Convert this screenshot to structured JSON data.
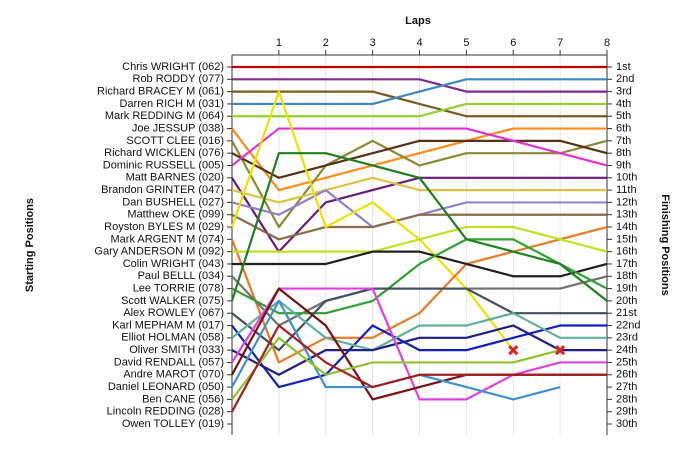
{
  "chart_data": {
    "type": "lap-chart",
    "title": "Laps",
    "y_title_left": "Starting Positions",
    "y_title_right": "Finishing Positions",
    "x": [
      0,
      1,
      2,
      3,
      4,
      5,
      6,
      7,
      8
    ],
    "xlim": [
      0,
      8
    ],
    "xticks": [
      1,
      2,
      3,
      4,
      5,
      6,
      7,
      8
    ],
    "ylim": [
      1,
      30
    ],
    "grid": true,
    "finish_labels": [
      "1st",
      "2nd",
      "3rd",
      "4th",
      "5th",
      "6th",
      "7th",
      "8th",
      "9th",
      "10th",
      "11th",
      "12th",
      "13th",
      "14th",
      "15th",
      "16th",
      "17th",
      "18th",
      "19th",
      "20th",
      "21st",
      "22nd",
      "23rd",
      "24th",
      "25th",
      "26th",
      "27th",
      "28th",
      "29th",
      "30th"
    ],
    "series": [
      {
        "name": "Chris WRIGHT (062)",
        "color": "#c00000",
        "values": [
          1,
          1,
          1,
          1,
          1,
          1,
          1,
          1,
          1
        ]
      },
      {
        "name": "Rob RODDY (077)",
        "color": "#7b2a8e",
        "values": [
          2,
          2,
          2,
          2,
          2,
          3,
          3,
          3,
          3
        ]
      },
      {
        "name": "Richard BRACEY     M (061)",
        "color": "#7a5a20",
        "values": [
          3,
          3,
          3,
          3,
          4,
          5,
          5,
          5,
          5
        ]
      },
      {
        "name": "Darren RICH     M (031)",
        "color": "#3a87c8",
        "values": [
          4,
          4,
          4,
          4,
          3,
          2,
          2,
          2,
          2
        ]
      },
      {
        "name": "Mark REDDING     M (064)",
        "color": "#90d030",
        "values": [
          5,
          5,
          5,
          5,
          5,
          4,
          4,
          4,
          4
        ]
      },
      {
        "name": "Joe JESSUP (038)",
        "color": "#ff8c1a",
        "values": [
          6,
          11,
          10,
          9,
          8,
          7,
          6,
          6,
          6
        ]
      },
      {
        "name": "SCOTT CLEE (016)",
        "color": "#8a8a30",
        "values": [
          7,
          14,
          9,
          7,
          9,
          8,
          8,
          8,
          7
        ]
      },
      {
        "name": "Richard WICKLEN (076)",
        "color": "#5a3010",
        "values": [
          8,
          10,
          9,
          8,
          7,
          7,
          7,
          7,
          8
        ]
      },
      {
        "name": "Dominic RUSSELL (005)",
        "color": "#e030d0",
        "values": [
          9,
          6,
          6,
          6,
          6,
          6,
          7,
          8,
          9
        ]
      },
      {
        "name": "Matt BARNES (020)",
        "color": "#6a1a7a",
        "values": [
          10,
          16,
          12,
          11,
          10,
          10,
          10,
          10,
          10
        ]
      },
      {
        "name": "Brandon GRINTER (047)",
        "color": "#e0c040",
        "values": [
          11,
          12,
          11,
          10,
          11,
          11,
          11,
          11,
          11
        ]
      },
      {
        "name": "Dan BUSHELL (027)",
        "color": "#9080d0",
        "values": [
          12,
          13,
          11,
          14,
          13,
          12,
          12,
          12,
          12
        ]
      },
      {
        "name": "Matthew OKE (099)",
        "color": "#8b6b4b",
        "values": [
          13,
          15,
          14,
          14,
          13,
          13,
          13,
          13,
          13
        ]
      },
      {
        "name": "Royston BYLES     M (029)",
        "color": "#f0e000",
        "retired": true,
        "values": [
          14,
          3,
          14,
          12,
          15,
          19,
          24,
          null,
          null
        ]
      },
      {
        "name": "Mark ARGENT     M (074)",
        "color": "#f07820",
        "values": [
          15,
          25,
          23,
          23,
          21,
          17,
          16,
          15,
          14
        ]
      },
      {
        "name": "Gary ANDERSON     M (092)",
        "color": "#c0e020",
        "values": [
          16,
          16,
          16,
          16,
          15,
          14,
          14,
          15,
          16
        ]
      },
      {
        "name": "Colin WRIGHT (043)",
        "color": "#202020",
        "values": [
          17,
          17,
          17,
          16,
          16,
          17,
          18,
          18,
          17
        ]
      },
      {
        "name": "Paul BELLL (034)",
        "color": "#707070",
        "values": [
          18,
          22,
          20,
          19,
          19,
          19,
          19,
          19,
          18
        ]
      },
      {
        "name": "Lee TORRIE (078)",
        "color": "#30a030",
        "values": [
          19,
          21,
          21,
          20,
          17,
          15,
          15,
          17,
          19
        ]
      },
      {
        "name": "Scott WALKER (075)",
        "color": "#208020",
        "values": [
          20,
          8,
          8,
          9,
          10,
          15,
          16,
          17,
          20
        ]
      },
      {
        "name": "Alex ROWLEY (067)",
        "color": "#405060",
        "values": [
          21,
          24,
          20,
          19,
          19,
          19,
          21,
          21,
          21
        ]
      },
      {
        "name": "Karl MEPHAM     M (017)",
        "color": "#1020c0",
        "values": [
          22,
          27,
          26,
          22,
          24,
          24,
          23,
          22,
          22
        ]
      },
      {
        "name": "Elliot HOLMAN (058)",
        "color": "#60b0a0",
        "values": [
          23,
          20,
          23,
          24,
          22,
          22,
          21,
          23,
          23
        ]
      },
      {
        "name": "Oliver SMITH (033)",
        "color": "#202080",
        "values": [
          24,
          26,
          24,
          24,
          23,
          23,
          22,
          24,
          24
        ]
      },
      {
        "name": "David RENDALL (057)",
        "color": "#e040e0",
        "values": [
          25,
          19,
          19,
          19,
          28,
          28,
          26,
          25,
          25
        ]
      },
      {
        "name": "Andre MAROT (070)",
        "color": "#7a1010",
        "values": [
          26,
          19,
          22,
          28,
          27,
          26,
          26,
          26,
          26
        ]
      },
      {
        "name": "Daniel LEONARD (050)",
        "color": "#4090d0",
        "values": [
          27,
          20,
          27,
          27,
          26,
          27,
          28,
          27,
          null
        ]
      },
      {
        "name": "Ben CANE (056)",
        "color": "#90c030",
        "retired": true,
        "values": [
          28,
          23,
          26,
          25,
          25,
          25,
          25,
          24,
          null
        ]
      },
      {
        "name": "Lincoln REDDING (028)",
        "color": "#a02020",
        "values": [
          29,
          22,
          25,
          27,
          26,
          26,
          26,
          26,
          26
        ]
      },
      {
        "name": "Owen TOLLEY (019)",
        "color": "#999999",
        "values": [
          30,
          null,
          null,
          null,
          null,
          null,
          null,
          null,
          null
        ]
      }
    ]
  }
}
